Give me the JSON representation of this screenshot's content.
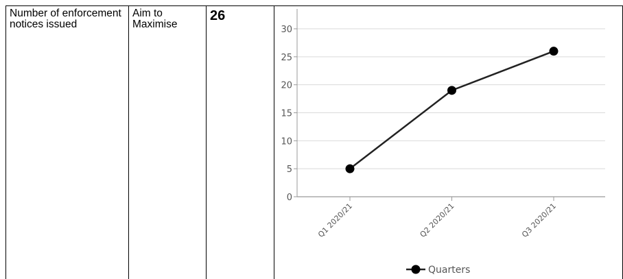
{
  "table": {
    "measure": "Number of enforcement notices issued",
    "aim": "Aim to Maximise",
    "value": "26"
  },
  "chart_data": {
    "type": "line",
    "categories": [
      "Q1 2020/21",
      "Q2 2020/21",
      "Q3 2020/21"
    ],
    "series": [
      {
        "name": "Quarters",
        "values": [
          5,
          19,
          26
        ],
        "color": "#222222"
      }
    ],
    "ylim": [
      0,
      30
    ],
    "yticks": [
      0,
      5,
      10,
      15,
      20,
      25,
      30
    ],
    "grid": true,
    "legend": "bottom"
  }
}
